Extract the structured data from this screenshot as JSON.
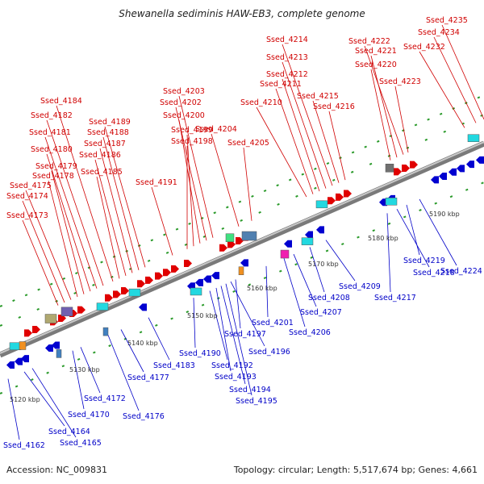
{
  "title": "Shewanella sediminis HAW-EB3, complete genome",
  "accession": "Accession: NC_009831",
  "topology": "Topology: circular; Length: 5,517,674 bp; Genes: 4,661",
  "colors": {
    "forward_label": "#d00000",
    "reverse_label": "#0000c8",
    "backbone": "#8a8a8a"
  },
  "kbp_ticks": [
    "5120 kbp",
    "5130 kbp",
    "5140 kbp",
    "5150 kbp",
    "5160 kbp",
    "5170 kbp",
    "5180 kbp",
    "5190 kbp"
  ],
  "top_labels": [
    "Ssed_4173",
    "Ssed_4174",
    "Ssed_4175",
    "Ssed_4178",
    "Ssed_4179",
    "Ssed_4180",
    "Ssed_4181",
    "Ssed_4182",
    "Ssed_4184",
    "Ssed_4185",
    "Ssed_4186",
    "Ssed_4187",
    "Ssed_4188",
    "Ssed_4189",
    "Ssed_4191",
    "Ssed_4198",
    "Ssed_4199",
    "Ssed_4200",
    "Ssed_4202",
    "Ssed_4203",
    "Ssed_4204",
    "Ssed_4205",
    "Ssed_4210",
    "Ssed_4211",
    "Ssed_4212",
    "Ssed_4213",
    "Ssed_4214",
    "Ssed_4215",
    "Ssed_4216",
    "Ssed_4220",
    "Ssed_4221",
    "Ssed_4222",
    "Ssed_4223",
    "Ssed_4232",
    "Ssed_4234",
    "Ssed_4235"
  ],
  "bottom_labels": [
    "Ssed_4162",
    "Ssed_4164",
    "Ssed_4165",
    "Ssed_4170",
    "Ssed_4172",
    "Ssed_4176",
    "Ssed_4177",
    "Ssed_4183",
    "Ssed_4190",
    "Ssed_4192",
    "Ssed_4193",
    "Ssed_4194",
    "Ssed_4195",
    "Ssed_4196",
    "Ssed_4197",
    "Ssed_4201",
    "Ssed_4206",
    "Ssed_4207",
    "Ssed_4208",
    "Ssed_4209",
    "Ssed_4217",
    "Ssed_4218",
    "Ssed_4219",
    "Ssed_4224"
  ]
}
